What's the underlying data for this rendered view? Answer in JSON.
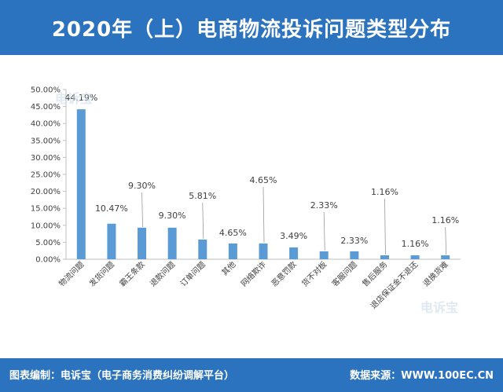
{
  "title": "2020年（上）电商物流投诉问题类型分布",
  "footer": {
    "left": "图表编制：电诉宝（电子商务消费纠纷调解平台）",
    "right": "数据来源：WWW.100EC.CN"
  },
  "watermarks": [
    "电诉宝",
    "电诉宝"
  ],
  "colors": {
    "accent": "#2b73bf",
    "bar": "#5b9bd5",
    "axis": "#bfbfbf",
    "text": "#404040"
  },
  "chart_data": {
    "type": "bar",
    "categories": [
      "物流问题",
      "发货问题",
      "霸王条款",
      "退款问题",
      "订单问题",
      "其他",
      "网络欺诈",
      "恶意罚款",
      "货不对板",
      "客服问题",
      "售后服务",
      "退店保证金不退还",
      "退换货难"
    ],
    "values": [
      44.19,
      10.47,
      9.3,
      9.3,
      5.81,
      4.65,
      4.65,
      3.49,
      2.33,
      2.33,
      1.16,
      1.16,
      1.16
    ],
    "value_labels": [
      "44.19%",
      "10.47%",
      "9.30%",
      "9.30%",
      "5.81%",
      "4.65%",
      "4.65%",
      "3.49%",
      "2.33%",
      "2.33%",
      "1.16%",
      "1.16%",
      "1.16%"
    ],
    "y_ticks": [
      "0.00%",
      "5.00%",
      "10.00%",
      "15.00%",
      "20.00%",
      "25.00%",
      "30.00%",
      "35.00%",
      "40.00%",
      "45.00%",
      "50.00%"
    ],
    "ylim": [
      0,
      50
    ],
    "grid": false,
    "legend": "none"
  }
}
